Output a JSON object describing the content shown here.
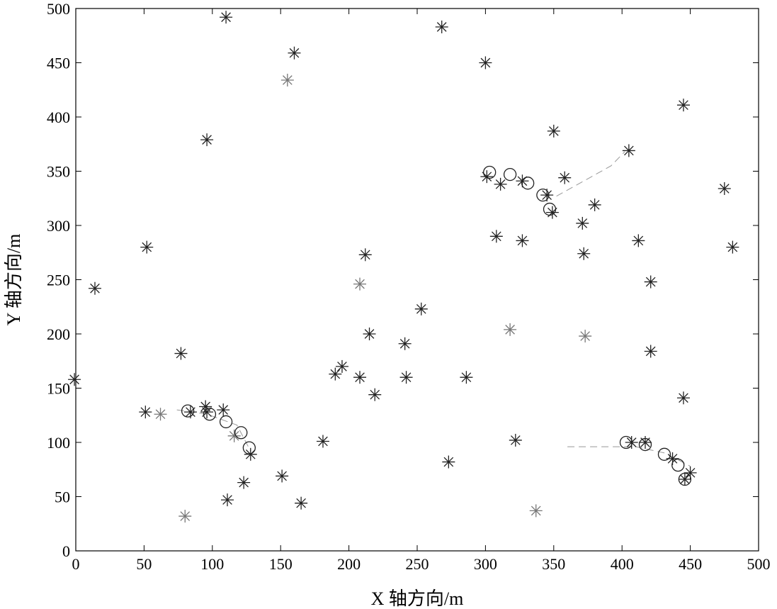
{
  "chart_data": {
    "type": "scatter",
    "xlabel": "X 轴方向/m",
    "ylabel": "Y 轴方向/m",
    "xlim": [
      0,
      500
    ],
    "ylim": [
      0,
      500
    ],
    "xticks": [
      0,
      50,
      100,
      150,
      200,
      250,
      300,
      350,
      400,
      450,
      500
    ],
    "yticks": [
      0,
      50,
      100,
      150,
      200,
      250,
      300,
      350,
      400,
      450,
      500
    ],
    "grid": false,
    "series": [
      {
        "marker": "asterisk",
        "color": "#222222",
        "points": [
          [
            110,
            492
          ],
          [
            160,
            459
          ],
          [
            268,
            483
          ],
          [
            300,
            450
          ],
          [
            96,
            379
          ],
          [
            445,
            411
          ],
          [
            350,
            387
          ],
          [
            405,
            369
          ],
          [
            301,
            345
          ],
          [
            311,
            338
          ],
          [
            327,
            341
          ],
          [
            345,
            328
          ],
          [
            358,
            344
          ],
          [
            349,
            312
          ],
          [
            380,
            319
          ],
          [
            371,
            302
          ],
          [
            308,
            290
          ],
          [
            327,
            286
          ],
          [
            412,
            286
          ],
          [
            475,
            334
          ],
          [
            481,
            280
          ],
          [
            372,
            274
          ],
          [
            421,
            248
          ],
          [
            52,
            280
          ],
          [
            14,
            242
          ],
          [
            212,
            273
          ],
          [
            253,
            223
          ],
          [
            215,
            200
          ],
          [
            241,
            191
          ],
          [
            77,
            182
          ],
          [
            421,
            184
          ],
          [
            -1,
            158
          ],
          [
            190,
            163
          ],
          [
            195,
            170
          ],
          [
            208,
            160
          ],
          [
            242,
            160
          ],
          [
            286,
            160
          ],
          [
            219,
            144
          ],
          [
            51,
            128
          ],
          [
            84,
            128
          ],
          [
            95,
            133
          ],
          [
            96,
            128
          ],
          [
            108,
            130
          ],
          [
            128,
            89
          ],
          [
            181,
            101
          ],
          [
            322,
            102
          ],
          [
            407,
            100
          ],
          [
            417,
            100
          ],
          [
            445,
            141
          ],
          [
            437,
            85
          ],
          [
            446,
            66
          ],
          [
            450,
            72
          ],
          [
            151,
            69
          ],
          [
            123,
            63
          ],
          [
            273,
            82
          ],
          [
            111,
            47
          ],
          [
            165,
            44
          ]
        ]
      },
      {
        "marker": "asterisk",
        "color": "#777777",
        "points": [
          [
            155,
            434
          ],
          [
            208,
            246
          ],
          [
            318,
            204
          ],
          [
            373,
            198
          ],
          [
            62,
            126
          ],
          [
            116,
            106
          ],
          [
            80,
            32
          ],
          [
            337,
            37
          ]
        ]
      },
      {
        "marker": "circle",
        "color": "#222222",
        "points": [
          [
            303,
            349
          ],
          [
            318,
            347
          ],
          [
            331,
            339
          ],
          [
            342,
            328
          ],
          [
            347,
            315
          ],
          [
            82,
            129
          ],
          [
            98,
            126
          ],
          [
            110,
            119
          ],
          [
            121,
            109
          ],
          [
            127,
            95
          ],
          [
            403,
            100
          ],
          [
            417,
            98
          ],
          [
            431,
            89
          ],
          [
            441,
            79
          ],
          [
            446,
            66
          ]
        ]
      },
      {
        "marker": "dashed-line",
        "color": "#999999",
        "lines": [
          [
            [
              352,
              327
            ],
            [
              392,
              355
            ],
            [
              402,
              368
            ]
          ],
          [
            [
              74,
              130
            ],
            [
              96,
              126
            ],
            [
              118,
              116
            ],
            [
              128,
              92
            ]
          ],
          [
            [
              360,
              96
            ],
            [
              410,
              96
            ],
            [
              432,
              90
            ],
            [
              450,
              78
            ]
          ]
        ]
      }
    ]
  }
}
